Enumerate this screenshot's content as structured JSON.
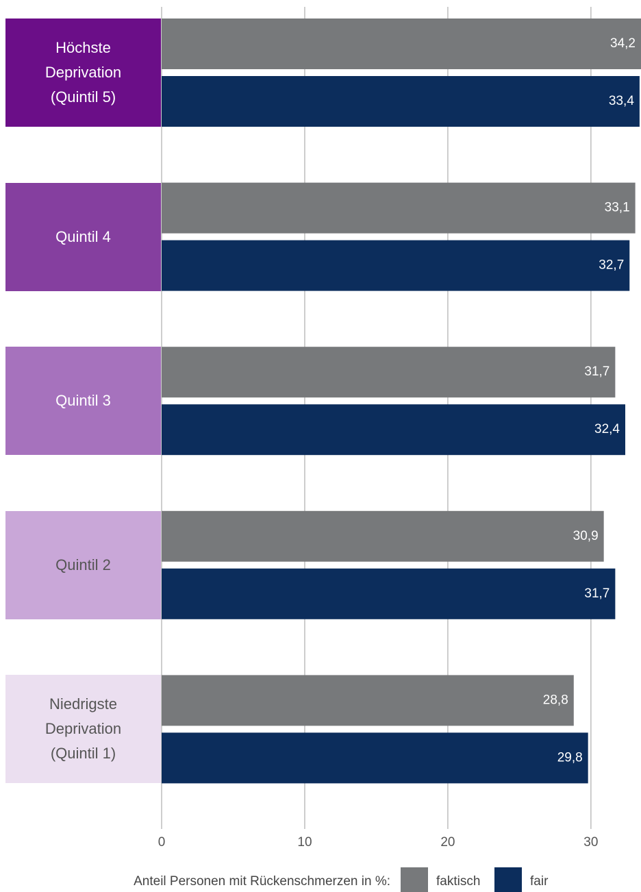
{
  "chart_data": {
    "type": "bar",
    "orientation": "horizontal",
    "categories": [
      "Höchste\nDeprivation\n(Quintil 5)",
      "Quintil 4",
      "Quintil 3",
      "Quintil 2",
      "Niedrigste\nDeprivation\n(Quintil 1)"
    ],
    "category_colors": [
      "#6b0e88",
      "#853f9f",
      "#a672bd",
      "#c9a7d8",
      "#ebdff0"
    ],
    "category_text_colors": [
      "#ffffff",
      "#ffffff",
      "#ffffff",
      "#555555",
      "#555555"
    ],
    "series": [
      {
        "name": "faktisch",
        "color": "#77797b",
        "values": [
          34.2,
          33.1,
          31.7,
          30.9,
          28.8
        ],
        "value_labels": [
          "34,2",
          "33,1",
          "31,7",
          "30,9",
          "28,8"
        ]
      },
      {
        "name": "fair",
        "color": "#0c2d5c",
        "values": [
          33.4,
          32.7,
          32.4,
          31.7,
          29.8
        ],
        "value_labels": [
          "33,4",
          "32,7",
          "32,4",
          "31,7",
          "29,8"
        ]
      }
    ],
    "xlim": [
      0,
      33.5
    ],
    "xticks": [
      0,
      10,
      20,
      30
    ],
    "grid": true,
    "legend_title": "Anteil Personen mit Rückenschmerzen in %:",
    "legend_position": "bottom"
  }
}
